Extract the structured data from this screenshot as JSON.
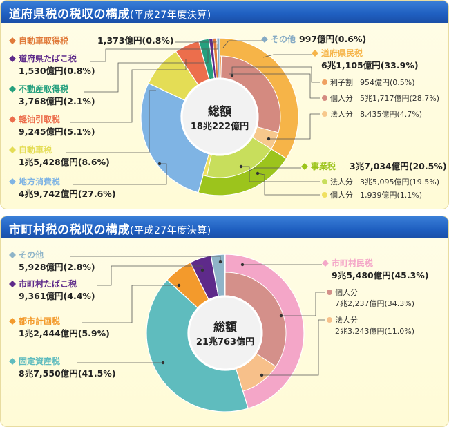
{
  "pref": {
    "title": "道府県税の税収の構成",
    "subtitle": "(平成27年度決算)",
    "center_label": "総額",
    "center_value": "18兆222億円"
  },
  "muni": {
    "title": "市町村税の税収の構成",
    "subtitle": "(平成27年度決算)",
    "center_label": "総額",
    "center_value": "21兆763億円"
  },
  "chart_data": [
    {
      "type": "pie",
      "title": "道府県税の税収の構成(平成27年度決算)",
      "total": "18兆222億円",
      "outer": [
        {
          "name": "道府県民税",
          "value_text": "6兆1,105億円(33.9%)",
          "percent": 33.9,
          "color": "#f6b448"
        },
        {
          "name": "事業税",
          "value_text": "3兆7,034億円(20.5%)",
          "percent": 20.5,
          "color": "#9cc41c"
        },
        {
          "name": "地方消費税",
          "value_text": "4兆9,742億円(27.6%)",
          "percent": 27.6,
          "color": "#7fb4e4"
        },
        {
          "name": "自動車税",
          "value_text": "1兆5,428億円(8.6%)",
          "percent": 8.6,
          "color": "#e4dd55"
        },
        {
          "name": "軽油引取税",
          "value_text": "9,245億円(5.1%)",
          "percent": 5.1,
          "color": "#ec6e4c"
        },
        {
          "name": "不動産取得税",
          "value_text": "3,768億円(2.1%)",
          "percent": 2.1,
          "color": "#26a07e"
        },
        {
          "name": "道府県たばこ税",
          "value_text": "1,530億円(0.8%)",
          "percent": 0.8,
          "color": "#5e2a8a"
        },
        {
          "name": "自動車取得税",
          "value_text": "1,373億円(0.8%)",
          "percent": 0.8,
          "color": "#e07a3a"
        },
        {
          "name": "その他",
          "value_text": "997億円(0.6%)",
          "percent": 0.6,
          "color": "#85aac4"
        }
      ],
      "inner": [
        {
          "parent": "道府県民税",
          "name": "利子割",
          "value_text": "954億円(0.5%)",
          "percent": 0.5,
          "color": "#f0a060"
        },
        {
          "parent": "道府県民税",
          "name": "個人分",
          "value_text": "5兆1,717億円(28.7%)",
          "percent": 28.7,
          "color": "#d48a80"
        },
        {
          "parent": "道府県民税",
          "name": "法人分",
          "value_text": "8,435億円(4.7%)",
          "percent": 4.7,
          "color": "#f7c88c"
        },
        {
          "parent": "事業税",
          "name": "法人分",
          "value_text": "3兆5,095億円(19.5%)",
          "percent": 19.5,
          "color": "#c8de5c"
        },
        {
          "parent": "事業税",
          "name": "個人分",
          "value_text": "1,939億円(1.1%)",
          "percent": 1.1,
          "color": "#f0e060"
        }
      ]
    },
    {
      "type": "pie",
      "title": "市町村税の税収の構成(平成27年度決算)",
      "total": "21兆763億円",
      "outer": [
        {
          "name": "市町村民税",
          "value_text": "9兆5,480億円(45.3%)",
          "percent": 45.3,
          "color": "#f4a6c8"
        },
        {
          "name": "固定資産税",
          "value_text": "8兆7,550億円(41.5%)",
          "percent": 41.5,
          "color": "#5fbcbe"
        },
        {
          "name": "都市計画税",
          "value_text": "1兆2,444億円(5.9%)",
          "percent": 5.9,
          "color": "#f39a2c"
        },
        {
          "name": "市町村たばこ税",
          "value_text": "9,361億円(4.4%)",
          "percent": 4.4,
          "color": "#5e2a8a"
        },
        {
          "name": "その他",
          "value_text": "5,928億円(2.8%)",
          "percent": 2.8,
          "color": "#8fb4c8"
        }
      ],
      "inner": [
        {
          "parent": "市町村民税",
          "name": "個人分",
          "value_text": "7兆2,237億円(34.3%)",
          "percent": 34.3,
          "color": "#d4908a"
        },
        {
          "parent": "市町村民税",
          "name": "法人分",
          "value_text": "2兆3,243億円(11.0%)",
          "percent": 11.0,
          "color": "#f7c08a"
        }
      ]
    }
  ]
}
